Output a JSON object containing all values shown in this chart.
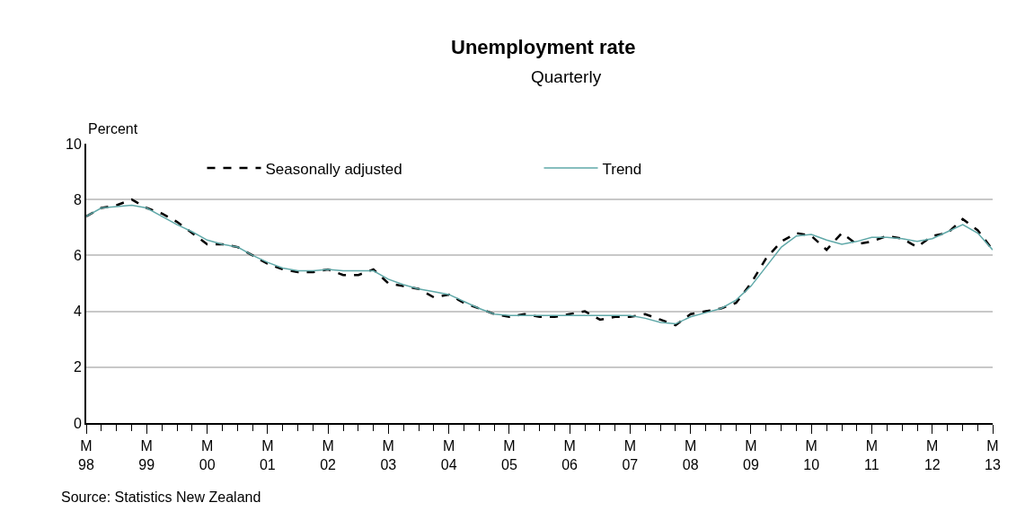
{
  "chart_data": {
    "type": "line",
    "title": "Unemployment rate",
    "subtitle": "Quarterly",
    "ylabel": "Percent",
    "x": [
      "1998-03",
      "1998-06",
      "1998-09",
      "1998-12",
      "1999-03",
      "1999-06",
      "1999-09",
      "1999-12",
      "2000-03",
      "2000-06",
      "2000-09",
      "2000-12",
      "2001-03",
      "2001-06",
      "2001-09",
      "2001-12",
      "2002-03",
      "2002-06",
      "2002-09",
      "2002-12",
      "2003-03",
      "2003-06",
      "2003-09",
      "2003-12",
      "2004-03",
      "2004-06",
      "2004-09",
      "2004-12",
      "2005-03",
      "2005-06",
      "2005-09",
      "2005-12",
      "2006-03",
      "2006-06",
      "2006-09",
      "2006-12",
      "2007-03",
      "2007-06",
      "2007-09",
      "2007-12",
      "2008-03",
      "2008-06",
      "2008-09",
      "2008-12",
      "2009-03",
      "2009-06",
      "2009-09",
      "2009-12",
      "2010-03",
      "2010-06",
      "2010-09",
      "2010-12",
      "2011-03",
      "2011-06",
      "2011-09",
      "2011-12",
      "2012-03",
      "2012-06",
      "2012-09",
      "2012-12",
      "2013-03"
    ],
    "series": [
      {
        "name": "Seasonally adjusted",
        "color": "#000000",
        "line_style": "dashed",
        "values": [
          7.4,
          7.7,
          7.8,
          8.0,
          7.7,
          7.5,
          7.2,
          6.8,
          6.4,
          6.4,
          6.3,
          6.0,
          5.7,
          5.5,
          5.4,
          5.4,
          5.5,
          5.3,
          5.3,
          5.5,
          5.0,
          4.9,
          4.8,
          4.5,
          4.6,
          4.3,
          4.1,
          3.9,
          3.8,
          3.9,
          3.8,
          3.8,
          3.9,
          4.0,
          3.7,
          3.8,
          3.8,
          3.9,
          3.7,
          3.5,
          3.9,
          4.0,
          4.1,
          4.3,
          5.0,
          5.9,
          6.5,
          6.8,
          6.7,
          6.2,
          6.8,
          6.4,
          6.5,
          6.7,
          6.6,
          6.3,
          6.7,
          6.8,
          7.3,
          6.9,
          6.2
        ]
      },
      {
        "name": "Trend",
        "color": "#5fa8a8",
        "line_style": "solid",
        "values": [
          7.4,
          7.7,
          7.75,
          7.8,
          7.7,
          7.4,
          7.1,
          6.85,
          6.55,
          6.4,
          6.3,
          6.0,
          5.75,
          5.55,
          5.45,
          5.45,
          5.5,
          5.45,
          5.45,
          5.45,
          5.15,
          4.95,
          4.8,
          4.7,
          4.6,
          4.35,
          4.1,
          3.9,
          3.85,
          3.85,
          3.85,
          3.85,
          3.85,
          3.85,
          3.85,
          3.85,
          3.85,
          3.75,
          3.6,
          3.55,
          3.8,
          3.95,
          4.1,
          4.4,
          4.9,
          5.6,
          6.3,
          6.7,
          6.75,
          6.55,
          6.4,
          6.5,
          6.65,
          6.65,
          6.6,
          6.5,
          6.6,
          6.85,
          7.1,
          6.8,
          6.2
        ]
      }
    ],
    "xlim": [
      "1998-03",
      "2013-03"
    ],
    "xticks": [
      {
        "value": "1998-03",
        "label": "M\n98"
      },
      {
        "value": "1999-03",
        "label": "M\n99"
      },
      {
        "value": "2000-03",
        "label": "M\n00"
      },
      {
        "value": "2001-03",
        "label": "M\n01"
      },
      {
        "value": "2002-03",
        "label": "M\n02"
      },
      {
        "value": "2003-03",
        "label": "M\n03"
      },
      {
        "value": "2004-03",
        "label": "M\n04"
      },
      {
        "value": "2005-03",
        "label": "M\n05"
      },
      {
        "value": "2006-03",
        "label": "M\n06"
      },
      {
        "value": "2007-03",
        "label": "M\n07"
      },
      {
        "value": "2008-03",
        "label": "M\n08"
      },
      {
        "value": "2009-03",
        "label": "M\n09"
      },
      {
        "value": "2010-03",
        "label": "M\n10"
      },
      {
        "value": "2011-03",
        "label": "M\n11"
      },
      {
        "value": "2012-03",
        "label": "M\n12"
      },
      {
        "value": "2013-03",
        "label": "M\n13"
      }
    ],
    "ylim": [
      0,
      10
    ],
    "yticks": [
      0,
      2,
      4,
      6,
      8,
      10
    ],
    "grid": "y",
    "legend": "top",
    "annotations": [
      "Source: Statistics New Zealand"
    ]
  }
}
